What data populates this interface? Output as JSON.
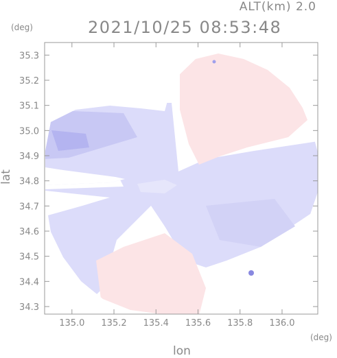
{
  "header": {
    "altitude_label": "ALT(km) 2.0",
    "timestamp": "2021/10/25 08:53:48"
  },
  "axes": {
    "y_unit": "(deg)",
    "x_unit": "(deg)",
    "y_label": "lat",
    "x_label": "lon",
    "x_ticks": [
      "135.0",
      "135.2",
      "135.4",
      "135.6",
      "135.8",
      "136.0"
    ],
    "y_ticks": [
      "35.3",
      "35.2",
      "35.1",
      "35.0",
      "34.9",
      "34.8",
      "34.7",
      "34.6",
      "34.5",
      "34.4",
      "34.3"
    ],
    "x_range": [
      134.87,
      136.17
    ],
    "y_range": [
      34.27,
      35.35
    ]
  },
  "map": {
    "type": "radar-doppler-velocity",
    "center": [
      135.515,
      34.82
    ],
    "colors": {
      "approaching": "#dcdcfa",
      "approaching_strong": "#b4b4f0",
      "receding": "#fce4e6",
      "frame": "#999999"
    }
  }
}
